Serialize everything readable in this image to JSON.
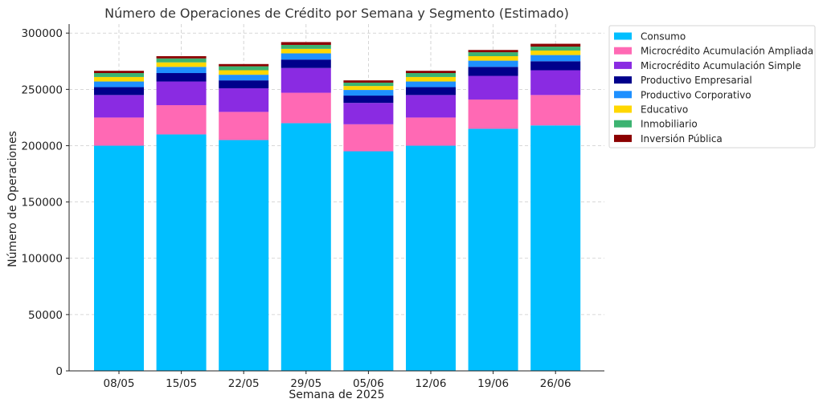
{
  "chart_data": {
    "type": "bar",
    "stacked": true,
    "title": "Número de Operaciones de Crédito por Semana y Segmento (Estimado)",
    "xlabel": "Semana de 2025",
    "ylabel": "Número de Operaciones",
    "ylim": [
      0,
      308000
    ],
    "yticks": [
      0,
      50000,
      100000,
      150000,
      200000,
      250000,
      300000
    ],
    "grid": true,
    "legend_position": "outside-top-right",
    "categories": [
      "08/05",
      "15/05",
      "22/05",
      "29/05",
      "05/06",
      "12/06",
      "19/06",
      "26/06"
    ],
    "series": [
      {
        "name": "Consumo",
        "color": "#00BFFF",
        "values": [
          200000,
          210000,
          205000,
          220000,
          195000,
          200000,
          215000,
          218000
        ]
      },
      {
        "name": "Microcrédito Acumulación Ampliada",
        "color": "#FF69B4",
        "values": [
          25000,
          26000,
          25000,
          27000,
          24000,
          25000,
          26000,
          27000
        ]
      },
      {
        "name": "Microcrédito Acumulación Simple",
        "color": "#8A2BE2",
        "values": [
          20000,
          21000,
          21000,
          22000,
          19000,
          20000,
          21000,
          22000
        ]
      },
      {
        "name": "Productivo Empresarial",
        "color": "#00008B",
        "values": [
          7000,
          7500,
          7000,
          7500,
          6500,
          7000,
          8000,
          8000
        ]
      },
      {
        "name": "Productivo Corporativo",
        "color": "#1E90FF",
        "values": [
          5000,
          5500,
          5000,
          5500,
          5000,
          5000,
          5500,
          5500
        ]
      },
      {
        "name": "Educativo",
        "color": "#FFD700",
        "values": [
          4000,
          4000,
          4000,
          4000,
          3500,
          4000,
          4000,
          4000
        ]
      },
      {
        "name": "Inmobiliario",
        "color": "#3CB371",
        "values": [
          3500,
          3500,
          3500,
          3500,
          3000,
          3500,
          3500,
          3500
        ]
      },
      {
        "name": "Inversión Pública",
        "color": "#8B0000",
        "values": [
          2000,
          2000,
          2000,
          2500,
          2000,
          2000,
          2000,
          2500
        ]
      }
    ]
  }
}
